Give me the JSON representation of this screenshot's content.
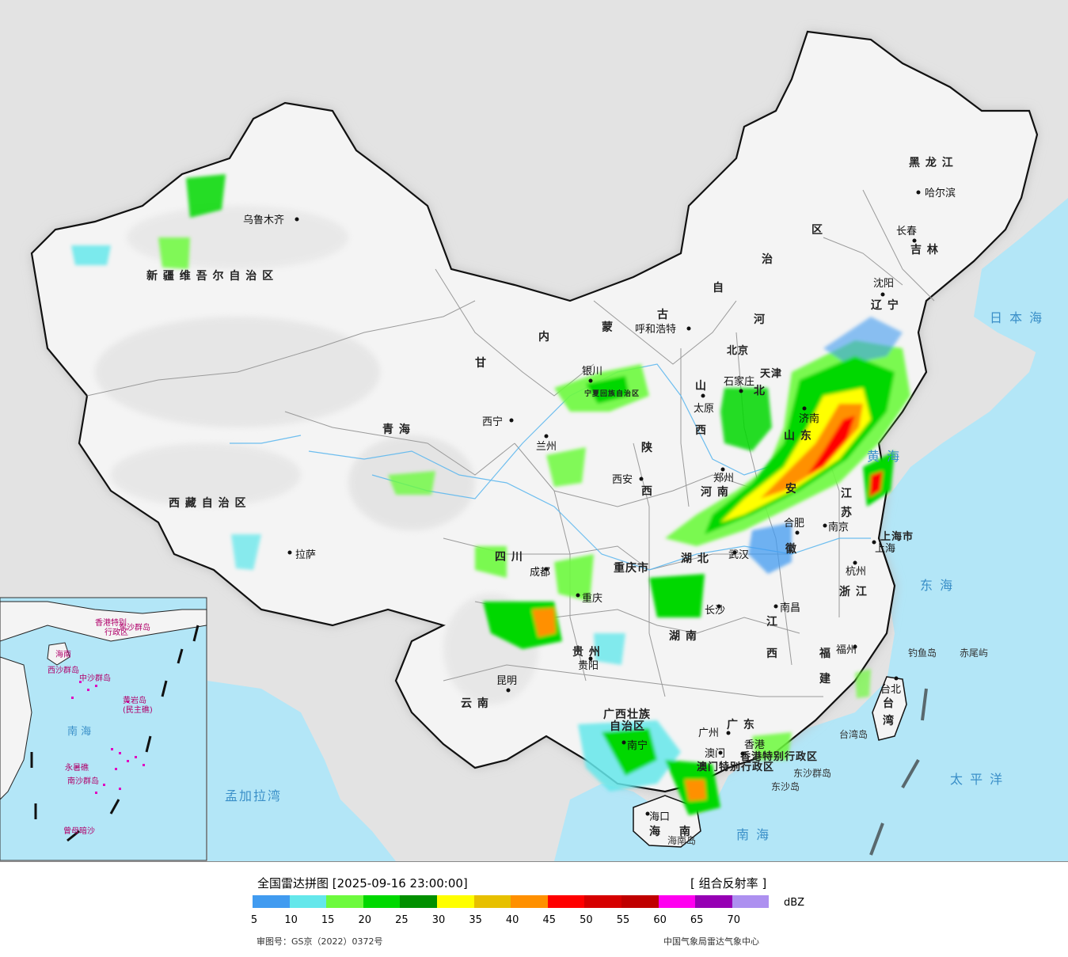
{
  "map": {
    "provinces": [
      {
        "id": "xinjiang",
        "label": "新 疆 维 吾 尔 自 治 区"
      },
      {
        "id": "xizang",
        "label": "西 藏 自 治 区"
      },
      {
        "id": "qinghai",
        "label": "青          海"
      },
      {
        "id": "gansu",
        "label": "甘"
      },
      {
        "id": "neimenggu_nei",
        "label": "内"
      },
      {
        "id": "neimenggu_meng",
        "label": "蒙"
      },
      {
        "id": "neimenggu_gu",
        "label": "古"
      },
      {
        "id": "neimenggu_zi",
        "label": "自"
      },
      {
        "id": "neimenggu_zhi",
        "label": "治"
      },
      {
        "id": "neimenggu_qu",
        "label": "区"
      },
      {
        "id": "heilongjiang",
        "label": "黑 龙 江"
      },
      {
        "id": "jilin",
        "label": "吉 林"
      },
      {
        "id": "liaoning",
        "label": "辽 宁"
      },
      {
        "id": "hebei_he",
        "label": "河"
      },
      {
        "id": "hebei_bei",
        "label": "北"
      },
      {
        "id": "shanxi_shan",
        "label": "山"
      },
      {
        "id": "shanxi_xi",
        "label": "西"
      },
      {
        "id": "shaanxi_shan",
        "label": "陕"
      },
      {
        "id": "shaanxi_xi",
        "label": "西"
      },
      {
        "id": "shandong",
        "label": "山 东"
      },
      {
        "id": "henan",
        "label": "河  南"
      },
      {
        "id": "jiangsu_jiang",
        "label": "江"
      },
      {
        "id": "jiangsu_su",
        "label": "苏"
      },
      {
        "id": "anhui_an",
        "label": "安"
      },
      {
        "id": "anhui_hui",
        "label": "徽"
      },
      {
        "id": "hubei",
        "label": "湖  北"
      },
      {
        "id": "sichuan",
        "label": "四      川"
      },
      {
        "id": "chongqing",
        "label": "重庆市"
      },
      {
        "id": "zhejiang",
        "label": "浙 江"
      },
      {
        "id": "jiangxi_jiang",
        "label": "江"
      },
      {
        "id": "jiangxi_xi",
        "label": "西"
      },
      {
        "id": "hunan",
        "label": "湖   南"
      },
      {
        "id": "guizhou",
        "label": "贵  州"
      },
      {
        "id": "yunnan",
        "label": "云  南"
      },
      {
        "id": "fujian_fu",
        "label": "福"
      },
      {
        "id": "fujian_jian",
        "label": "建"
      },
      {
        "id": "guangxi1",
        "label": "广西壮族"
      },
      {
        "id": "guangxi2",
        "label": "自治区"
      },
      {
        "id": "guangdong",
        "label": "广  东"
      },
      {
        "id": "hainan1",
        "label": "海"
      },
      {
        "id": "hainan2",
        "label": "南"
      },
      {
        "id": "taiwan_tai",
        "label": "台"
      },
      {
        "id": "taiwan_wan",
        "label": "湾"
      },
      {
        "id": "ningxia",
        "label": "宁夏回族自治区"
      },
      {
        "id": "shanghai",
        "label": "上海市"
      },
      {
        "id": "beijing",
        "label": "北京"
      },
      {
        "id": "tianjin",
        "label": "天津"
      },
      {
        "id": "hongkong",
        "label": "香港特别行政区"
      },
      {
        "id": "macau",
        "label": "澳门特别行政区"
      }
    ],
    "cities": [
      {
        "id": "urumqi",
        "label": "乌鲁木齐"
      },
      {
        "id": "lhasa",
        "label": "拉萨"
      },
      {
        "id": "xining",
        "label": "西宁"
      },
      {
        "id": "lanzhou",
        "label": "兰州"
      },
      {
        "id": "yinchuan",
        "label": "银川"
      },
      {
        "id": "hohhot",
        "label": "呼和浩特"
      },
      {
        "id": "harbin",
        "label": "哈尔滨"
      },
      {
        "id": "changchun",
        "label": "长春"
      },
      {
        "id": "shenyang",
        "label": "沈阳"
      },
      {
        "id": "shijiazhuang",
        "label": "石家庄"
      },
      {
        "id": "taiyuan",
        "label": "太原"
      },
      {
        "id": "xian",
        "label": "西安"
      },
      {
        "id": "zhengzhou",
        "label": "郑州"
      },
      {
        "id": "jinan",
        "label": "济南"
      },
      {
        "id": "nanjing",
        "label": "南京"
      },
      {
        "id": "hefei",
        "label": "合肥"
      },
      {
        "id": "wuhan",
        "label": "武汉"
      },
      {
        "id": "chengdu",
        "label": "成都"
      },
      {
        "id": "chongqing",
        "label": "重庆"
      },
      {
        "id": "guiyang",
        "label": "贵阳"
      },
      {
        "id": "kunming",
        "label": "昆明"
      },
      {
        "id": "changsha",
        "label": "长沙"
      },
      {
        "id": "nanchang",
        "label": "南昌"
      },
      {
        "id": "hangzhou",
        "label": "杭州"
      },
      {
        "id": "shanghai",
        "label": "上海"
      },
      {
        "id": "fuzhou",
        "label": "福州"
      },
      {
        "id": "taipei",
        "label": "台北"
      },
      {
        "id": "guangzhou",
        "label": "广州"
      },
      {
        "id": "hongkong",
        "label": "香港"
      },
      {
        "id": "macau",
        "label": "澳门"
      },
      {
        "id": "nanning",
        "label": "南宁"
      },
      {
        "id": "haikou",
        "label": "海口"
      }
    ],
    "islands": [
      {
        "id": "diaoyu",
        "label": "钓鱼岛"
      },
      {
        "id": "chiwei",
        "label": "赤尾屿"
      },
      {
        "id": "taiwan_island",
        "label": "台湾岛"
      },
      {
        "id": "dongsha_islands",
        "label": "东沙群岛"
      },
      {
        "id": "dongsha_island",
        "label": "东沙岛"
      },
      {
        "id": "hainan_island",
        "label": "海南岛"
      }
    ],
    "seas": [
      {
        "id": "japan_sea",
        "label": "日 本 海"
      },
      {
        "id": "yellow_sea",
        "label": "黄  海"
      },
      {
        "id": "east_sea",
        "label": "东   海"
      },
      {
        "id": "pacific",
        "label": "太   平   洋"
      },
      {
        "id": "south_sea",
        "label": "南          海"
      },
      {
        "id": "bengal",
        "label": "孟加拉湾"
      }
    ],
    "inset": {
      "labels": [
        "南  海",
        "西沙群岛",
        "中沙群岛",
        "南沙群岛",
        "黄岩岛",
        "(民主礁)",
        "永暑礁",
        "曾母暗沙",
        "东沙群岛",
        "海南",
        "香港特别",
        "行政区"
      ]
    },
    "colors": {
      "ocean": "#b3e6f7",
      "outside": "#e3e3e3",
      "land": "#f7f7f7",
      "border": "#111111",
      "prov_border": "#9a9a9a",
      "river": "#5fb8ee"
    }
  },
  "legend": {
    "title": "全国雷达拼图 [2025-09-16 23:00:00]",
    "product": "[ 组合反射率 ]",
    "unit": "dBZ",
    "colors": [
      "#419bf0",
      "#64e7eb",
      "#6dfa3d",
      "#00d800",
      "#019000",
      "#ffff00",
      "#e7c000",
      "#ff9000",
      "#ff0000",
      "#d60000",
      "#c00000",
      "#ff00f0",
      "#9600b4",
      "#ad90f0"
    ],
    "ticks": [
      "5",
      "10",
      "15",
      "20",
      "25",
      "30",
      "35",
      "40",
      "45",
      "50",
      "55",
      "60",
      "65",
      "70"
    ],
    "review_no": "审图号：GS京（2022）0372号",
    "source": "中国气象局雷达气象中心"
  },
  "radar_echoes": [
    {
      "region": "north-china-plain",
      "max_dbz": 50
    },
    {
      "region": "shandong-jiangsu",
      "max_dbz": 55
    },
    {
      "region": "sichuan-chongqing",
      "max_dbz": 45
    },
    {
      "region": "guangdong-guangxi",
      "max_dbz": 45
    },
    {
      "region": "xinjiang-north",
      "max_dbz": 25
    }
  ]
}
